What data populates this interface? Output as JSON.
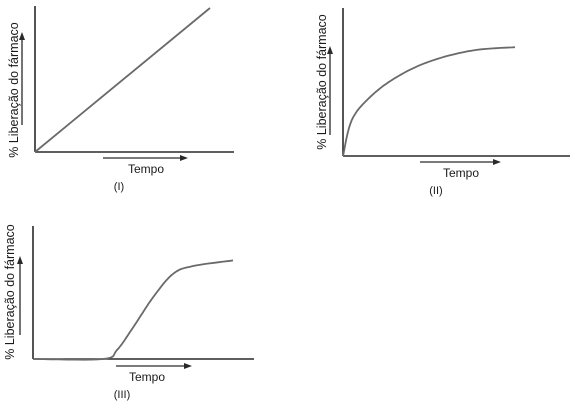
{
  "chart_data": [
    {
      "type": "line",
      "xlabel": "Tempo",
      "ylabel": "% Liberação do fármaco",
      "caption": "(I)",
      "series": [
        {
          "x": [
            0,
            1
          ],
          "y": [
            0,
            1
          ]
        }
      ]
    },
    {
      "type": "line",
      "xlabel": "Tempo",
      "ylabel": "% Liberação do fármaco",
      "caption": "(II)",
      "series": [
        {
          "x": [
            0,
            0.05,
            0.15,
            0.3,
            0.5,
            0.75,
            1.0
          ],
          "y": [
            0,
            0.32,
            0.52,
            0.7,
            0.85,
            0.95,
            0.98
          ]
        }
      ]
    },
    {
      "type": "line",
      "xlabel": "Tempo",
      "ylabel": "% Liberação do fármaco",
      "caption": "(III)",
      "series": [
        {
          "x": [
            0,
            0.35,
            0.42,
            0.5,
            0.6,
            0.7,
            0.8,
            1.0
          ],
          "y": [
            0,
            0.0,
            0.08,
            0.28,
            0.55,
            0.76,
            0.83,
            0.88
          ]
        }
      ]
    }
  ]
}
